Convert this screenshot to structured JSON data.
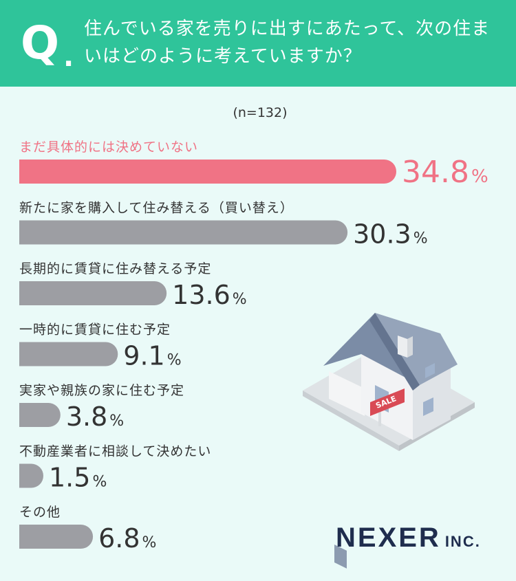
{
  "header": {
    "q_mark": "Q",
    "q_dot": ".",
    "question": "住んでいる家を売りに出すにあたって、次の住まいはどのように考えていますか？"
  },
  "chart_data": {
    "type": "bar",
    "orientation": "horizontal",
    "sample_note": "(n=132)",
    "unit": "%",
    "xlim": [
      0,
      34.8
    ],
    "categories": [
      "まだ具体的には決めていない",
      "新たに家を購入して住み替える（買い替え）",
      "長期的に賃貸に住み替える予定",
      "一時的に賃貸に住む予定",
      "実家や親族の家に住む予定",
      "不動産業者に相談して決めたい",
      "その他"
    ],
    "values": [
      34.8,
      30.3,
      13.6,
      9.1,
      3.8,
      1.5,
      6.8
    ],
    "value_labels": [
      "34.8",
      "30.3",
      "13.6",
      "9.1",
      "3.8",
      "1.5",
      "6.8"
    ],
    "highlight_index": 0,
    "colors": {
      "highlight": "#f07385",
      "default": "#9d9ea3",
      "text": "#333333"
    }
  },
  "logo": {
    "name": "NEXER",
    "suffix": "INC."
  }
}
